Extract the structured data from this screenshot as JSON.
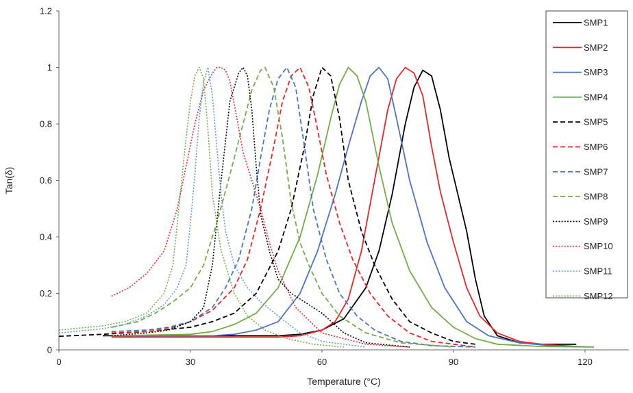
{
  "chart_data": {
    "type": "line",
    "title": "",
    "xlabel": "Temperature (°C)",
    "ylabel": "Tan(δ)",
    "xlim": [
      0,
      130
    ],
    "ylim": [
      0,
      1.2
    ],
    "xticks": [
      0,
      30,
      60,
      90,
      120
    ],
    "yticks": [
      0,
      0.2,
      0.4,
      0.6,
      0.8,
      1,
      1.2
    ],
    "grid": false,
    "legend_position": "top-right",
    "series": [
      {
        "name": "SMP1",
        "color": "#000000",
        "dash": "solid",
        "x": [
          10,
          50,
          55,
          60,
          65,
          70,
          73,
          76,
          79,
          81,
          83,
          85,
          87,
          89,
          91,
          93,
          95,
          97,
          100,
          105,
          110,
          118
        ],
        "y": [
          0.05,
          0.05,
          0.055,
          0.07,
          0.11,
          0.22,
          0.35,
          0.55,
          0.8,
          0.93,
          0.99,
          0.97,
          0.85,
          0.68,
          0.55,
          0.42,
          0.25,
          0.12,
          0.05,
          0.025,
          0.02,
          0.02
        ]
      },
      {
        "name": "SMP2",
        "color": "#e8262a",
        "dash": "solid",
        "x": [
          12,
          50,
          55,
          60,
          63,
          66,
          69,
          72,
          75,
          77,
          79,
          81,
          83,
          85,
          87,
          90,
          93,
          96,
          100,
          105,
          110,
          120
        ],
        "y": [
          0.045,
          0.045,
          0.05,
          0.07,
          0.1,
          0.18,
          0.35,
          0.6,
          0.85,
          0.96,
          1.0,
          0.98,
          0.9,
          0.72,
          0.56,
          0.38,
          0.22,
          0.12,
          0.06,
          0.03,
          0.02,
          0.01
        ]
      },
      {
        "name": "SMP3",
        "color": "#4a74c2",
        "dash": "solid",
        "x": [
          12,
          35,
          40,
          45,
          50,
          55,
          59,
          63,
          66,
          69,
          71,
          73,
          75,
          77,
          80,
          84,
          88,
          93,
          98,
          105,
          112,
          122
        ],
        "y": [
          0.05,
          0.05,
          0.055,
          0.07,
          0.1,
          0.2,
          0.35,
          0.55,
          0.72,
          0.88,
          0.97,
          1.0,
          0.96,
          0.82,
          0.6,
          0.38,
          0.22,
          0.1,
          0.05,
          0.025,
          0.015,
          0.01
        ]
      },
      {
        "name": "SMP4",
        "color": "#70ad47",
        "dash": "solid",
        "x": [
          12,
          30,
          35,
          40,
          45,
          50,
          55,
          59,
          62,
          64,
          66,
          68,
          70,
          73,
          76,
          80,
          85,
          90,
          95,
          100,
          110,
          122
        ],
        "y": [
          0.05,
          0.055,
          0.065,
          0.09,
          0.13,
          0.22,
          0.4,
          0.62,
          0.82,
          0.94,
          1.0,
          0.97,
          0.88,
          0.65,
          0.45,
          0.28,
          0.15,
          0.08,
          0.04,
          0.02,
          0.012,
          0.01
        ]
      },
      {
        "name": "SMP5",
        "color": "#000000",
        "dash": "dashed",
        "x": [
          0,
          10,
          20,
          30,
          35,
          40,
          45,
          50,
          53,
          56,
          58,
          60,
          62,
          64,
          66,
          69,
          72,
          76,
          80,
          85,
          90,
          95
        ],
        "y": [
          0.048,
          0.055,
          0.065,
          0.08,
          0.1,
          0.13,
          0.2,
          0.35,
          0.5,
          0.72,
          0.9,
          1.0,
          0.97,
          0.82,
          0.6,
          0.42,
          0.3,
          0.18,
          0.1,
          0.06,
          0.03,
          0.02
        ]
      },
      {
        "name": "SMP6",
        "color": "#e8262a",
        "dash": "dashed",
        "x": [
          12,
          20,
          25,
          30,
          35,
          40,
          43,
          46,
          49,
          51,
          53,
          55,
          57,
          59,
          61,
          64,
          67,
          71,
          75,
          80,
          85,
          95
        ],
        "y": [
          0.06,
          0.065,
          0.075,
          0.1,
          0.14,
          0.22,
          0.32,
          0.5,
          0.72,
          0.88,
          0.97,
          1.0,
          0.93,
          0.78,
          0.62,
          0.45,
          0.32,
          0.2,
          0.12,
          0.06,
          0.03,
          0.01
        ]
      },
      {
        "name": "SMP7",
        "color": "#4a74c2",
        "dash": "dashed",
        "x": [
          12,
          20,
          25,
          30,
          35,
          38,
          41,
          44,
          46,
          48,
          50,
          52,
          54,
          56,
          58,
          61,
          64,
          68,
          72,
          78,
          85,
          95
        ],
        "y": [
          0.065,
          0.07,
          0.08,
          0.1,
          0.15,
          0.22,
          0.32,
          0.5,
          0.68,
          0.85,
          0.96,
          1.0,
          0.93,
          0.72,
          0.5,
          0.32,
          0.2,
          0.12,
          0.07,
          0.03,
          0.015,
          0.01
        ]
      },
      {
        "name": "SMP8",
        "color": "#70ad47",
        "dash": "dashed",
        "x": [
          12,
          18,
          22,
          26,
          30,
          33,
          36,
          39,
          42,
          44,
          46,
          47,
          49,
          51,
          53,
          55,
          57,
          60,
          64,
          70,
          78,
          90
        ],
        "y": [
          0.08,
          0.1,
          0.13,
          0.17,
          0.22,
          0.3,
          0.45,
          0.62,
          0.8,
          0.92,
          0.99,
          1.0,
          0.93,
          0.75,
          0.52,
          0.38,
          0.3,
          0.2,
          0.12,
          0.06,
          0.025,
          0.01
        ]
      },
      {
        "name": "SMP9",
        "color": "#000000",
        "dash": "dotted",
        "x": [
          12,
          20,
          25,
          30,
          33,
          35,
          37,
          39,
          41,
          42,
          43,
          44,
          45,
          46,
          48,
          50,
          53,
          56,
          60,
          65,
          70,
          80
        ],
        "y": [
          0.05,
          0.06,
          0.07,
          0.1,
          0.15,
          0.3,
          0.6,
          0.88,
          0.98,
          1.0,
          0.97,
          0.85,
          0.65,
          0.48,
          0.35,
          0.25,
          0.2,
          0.17,
          0.13,
          0.06,
          0.025,
          0.01
        ]
      },
      {
        "name": "SMP10",
        "color": "#e8262a",
        "dash": "dotted",
        "x": [
          12,
          16,
          20,
          24,
          27,
          29,
          31,
          33,
          35,
          36,
          37,
          38,
          39,
          40,
          42,
          44,
          46,
          48,
          50,
          54,
          60,
          70,
          80
        ],
        "y": [
          0.19,
          0.22,
          0.27,
          0.35,
          0.5,
          0.65,
          0.8,
          0.92,
          0.98,
          1.0,
          1.0,
          0.99,
          0.95,
          0.87,
          0.7,
          0.6,
          0.5,
          0.38,
          0.28,
          0.15,
          0.06,
          0.02,
          0.01
        ]
      },
      {
        "name": "SMP11",
        "color": "#5b9bd5",
        "dash": "dotted",
        "x": [
          0,
          10,
          15,
          20,
          24,
          27,
          29,
          30,
          31,
          32,
          33,
          34,
          35,
          36,
          37,
          38,
          40,
          43,
          46,
          50,
          55,
          60,
          70
        ],
        "y": [
          0.06,
          0.075,
          0.09,
          0.12,
          0.16,
          0.22,
          0.3,
          0.45,
          0.62,
          0.82,
          0.95,
          1.0,
          0.9,
          0.72,
          0.55,
          0.42,
          0.3,
          0.22,
          0.17,
          0.12,
          0.06,
          0.03,
          0.01
        ]
      },
      {
        "name": "SMP12",
        "color": "#70ad47",
        "dash": "dotted",
        "x": [
          0,
          10,
          15,
          20,
          24,
          26,
          27,
          28,
          29,
          30,
          31,
          32,
          33,
          34,
          35,
          37,
          40,
          43,
          47,
          52,
          58,
          65
        ],
        "y": [
          0.07,
          0.085,
          0.1,
          0.13,
          0.2,
          0.3,
          0.45,
          0.6,
          0.75,
          0.88,
          0.97,
          1.0,
          0.96,
          0.78,
          0.55,
          0.35,
          0.2,
          0.12,
          0.07,
          0.04,
          0.02,
          0.01
        ]
      }
    ]
  }
}
